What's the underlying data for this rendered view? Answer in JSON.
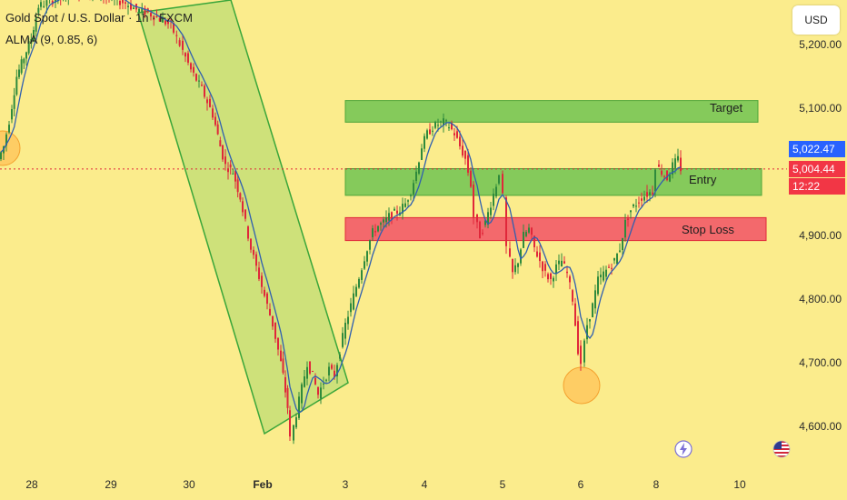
{
  "header": {
    "symbol": "Gold Spot / U.S. Dollar · 1h · FXCM",
    "indicator": "ALMA (9, 0.85, 6)"
  },
  "currency_button": "USD",
  "price_labels": {
    "last_high": "5,022.47",
    "current": "5,004.44",
    "countdown": "12:22"
  },
  "zones": {
    "target": "Target",
    "entry": "Entry",
    "stop": "Stop Loss"
  },
  "colors": {
    "background": "#fbec8c",
    "up": "#2f8a3c",
    "down": "#e0273a",
    "zone_green": "#7ec859",
    "zone_red": "#f2626a",
    "alma": "#2f5fb0",
    "price_blue": "#2962ff",
    "price_red": "#f23645"
  },
  "icons": {
    "lightning": "lightning-icon",
    "flag": "us-flag-icon"
  },
  "chart_data": {
    "type": "candlestick",
    "y_ticks": [
      "5,200.00",
      "5,100.00",
      "4,900.00",
      "4,800.00",
      "4,700.00",
      "4,600.00"
    ],
    "y_tick_values": [
      5200,
      5100,
      4900,
      4800,
      4700,
      4600
    ],
    "x_ticks": [
      "28",
      "29",
      "30",
      "Feb",
      "3",
      "4",
      "5",
      "6",
      "8",
      "10"
    ],
    "ylim": [
      4552,
      5260
    ],
    "current_price": 5004.44,
    "zones": [
      {
        "name": "Target",
        "low": 5078,
        "high": 5112,
        "color": "green"
      },
      {
        "name": "Entry",
        "low": 4963,
        "high": 5005,
        "color": "green"
      },
      {
        "name": "Stop Loss",
        "low": 4892,
        "high": 4928,
        "color": "red"
      }
    ],
    "path": [
      [
        0,
        5020
      ],
      [
        6,
        5040
      ],
      [
        12,
        5080
      ],
      [
        20,
        5150
      ],
      [
        28,
        5180
      ],
      [
        36,
        5210
      ],
      [
        44,
        5260
      ],
      [
        60,
        5270
      ],
      [
        80,
        5280
      ],
      [
        110,
        5280
      ],
      [
        140,
        5265
      ],
      [
        152,
        5255
      ],
      [
        165,
        5250
      ],
      [
        178,
        5240
      ],
      [
        190,
        5230
      ],
      [
        200,
        5200
      ],
      [
        212,
        5160
      ],
      [
        224,
        5130
      ],
      [
        236,
        5090
      ],
      [
        244,
        5040
      ],
      [
        250,
        5010
      ],
      [
        258,
        5000
      ],
      [
        266,
        4960
      ],
      [
        272,
        4920
      ],
      [
        278,
        4880
      ],
      [
        284,
        4850
      ],
      [
        290,
        4820
      ],
      [
        296,
        4790
      ],
      [
        302,
        4760
      ],
      [
        308,
        4720
      ],
      [
        313,
        4680
      ],
      [
        318,
        4630
      ],
      [
        322,
        4580
      ],
      [
        328,
        4620
      ],
      [
        334,
        4660
      ],
      [
        340,
        4700
      ],
      [
        346,
        4680
      ],
      [
        352,
        4650
      ],
      [
        358,
        4670
      ],
      [
        364,
        4690
      ],
      [
        370,
        4680
      ],
      [
        376,
        4720
      ],
      [
        382,
        4760
      ],
      [
        388,
        4790
      ],
      [
        394,
        4820
      ],
      [
        400,
        4850
      ],
      [
        406,
        4880
      ],
      [
        412,
        4905
      ],
      [
        418,
        4915
      ],
      [
        424,
        4920
      ],
      [
        430,
        4930
      ],
      [
        436,
        4935
      ],
      [
        442,
        4940
      ],
      [
        448,
        4950
      ],
      [
        454,
        4970
      ],
      [
        460,
        5000
      ],
      [
        466,
        5040
      ],
      [
        472,
        5060
      ],
      [
        478,
        5070
      ],
      [
        484,
        5075
      ],
      [
        490,
        5078
      ],
      [
        496,
        5072
      ],
      [
        502,
        5060
      ],
      [
        508,
        5040
      ],
      [
        514,
        5020
      ],
      [
        520,
        4980
      ],
      [
        524,
        4930
      ],
      [
        530,
        4900
      ],
      [
        536,
        4920
      ],
      [
        542,
        4950
      ],
      [
        548,
        4980
      ],
      [
        552,
        5000
      ],
      [
        556,
        4960
      ],
      [
        560,
        4880
      ],
      [
        566,
        4840
      ],
      [
        572,
        4860
      ],
      [
        578,
        4900
      ],
      [
        584,
        4910
      ],
      [
        590,
        4880
      ],
      [
        596,
        4860
      ],
      [
        602,
        4840
      ],
      [
        608,
        4830
      ],
      [
        614,
        4850
      ],
      [
        620,
        4860
      ],
      [
        626,
        4840
      ],
      [
        632,
        4800
      ],
      [
        638,
        4720
      ],
      [
        642,
        4700
      ],
      [
        648,
        4760
      ],
      [
        654,
        4790
      ],
      [
        660,
        4830
      ],
      [
        666,
        4840
      ],
      [
        672,
        4850
      ],
      [
        678,
        4860
      ],
      [
        684,
        4880
      ],
      [
        690,
        4920
      ],
      [
        696,
        4940
      ],
      [
        702,
        4950
      ],
      [
        708,
        4960
      ],
      [
        714,
        4965
      ],
      [
        720,
        4970
      ],
      [
        724,
        5010
      ],
      [
        730,
        5000
      ],
      [
        736,
        4990
      ],
      [
        742,
        5010
      ],
      [
        748,
        5020
      ],
      [
        752,
        5005
      ]
    ]
  }
}
